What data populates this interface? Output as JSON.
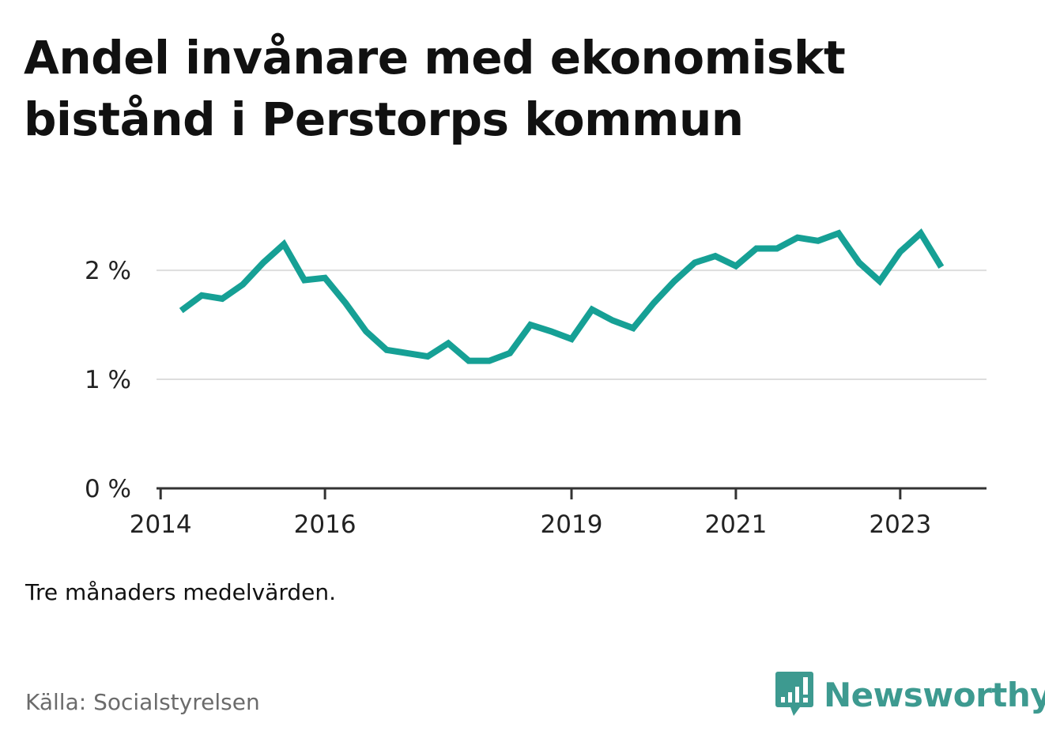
{
  "title_lines": [
    "Andel invånare med ekonomiskt",
    "bistånd i Perstorps kommun"
  ],
  "note": "Tre månaders medelvärden.",
  "source": "Källa: Socialstyrelsen",
  "brand": {
    "name": "Newsworthy",
    "icon": "bar-chart-speech-bubble-icon",
    "color": "#3d9a90"
  },
  "chart_data": {
    "type": "line",
    "title": "Andel invånare med ekonomiskt bistånd i Perstorps kommun",
    "xlabel": "",
    "ylabel": "",
    "ylim": [
      0,
      2.45
    ],
    "xlim": [
      2013.95,
      2024.05
    ],
    "y_ticks": [
      {
        "value": 0,
        "label": "0 %"
      },
      {
        "value": 1,
        "label": "1 %"
      },
      {
        "value": 2,
        "label": "2 %"
      }
    ],
    "x_ticks": [
      {
        "value": 2014,
        "label": "2014"
      },
      {
        "value": 2016,
        "label": "2016"
      },
      {
        "value": 2019,
        "label": "2019"
      },
      {
        "value": 2021,
        "label": "2021"
      },
      {
        "value": 2023,
        "label": "2023"
      }
    ],
    "grid": true,
    "line_color": "#16a095",
    "series": [
      {
        "x": [
          2014.25,
          2014.5,
          2014.75,
          2015.0,
          2015.25,
          2015.5,
          2015.75,
          2016.0,
          2016.25,
          2016.5,
          2016.75,
          2017.0,
          2017.25,
          2017.5,
          2017.75,
          2018.0,
          2018.25,
          2018.5,
          2018.75,
          2019.0,
          2019.25,
          2019.5,
          2019.75,
          2020.0,
          2020.25,
          2020.5,
          2020.75,
          2021.0,
          2021.25,
          2021.5,
          2021.75,
          2022.0,
          2022.25,
          2022.5,
          2022.75,
          2023.0,
          2023.25,
          2023.5
        ],
        "values": [
          1.63,
          1.77,
          1.74,
          1.87,
          2.07,
          2.24,
          1.91,
          1.93,
          1.7,
          1.44,
          1.27,
          1.24,
          1.21,
          1.33,
          1.17,
          1.17,
          1.24,
          1.5,
          1.44,
          1.37,
          1.64,
          1.54,
          1.47,
          1.7,
          1.9,
          2.07,
          2.13,
          2.04,
          2.2,
          2.2,
          2.3,
          2.27,
          2.34,
          2.07,
          1.9,
          2.17,
          2.34,
          2.03
        ]
      }
    ]
  }
}
